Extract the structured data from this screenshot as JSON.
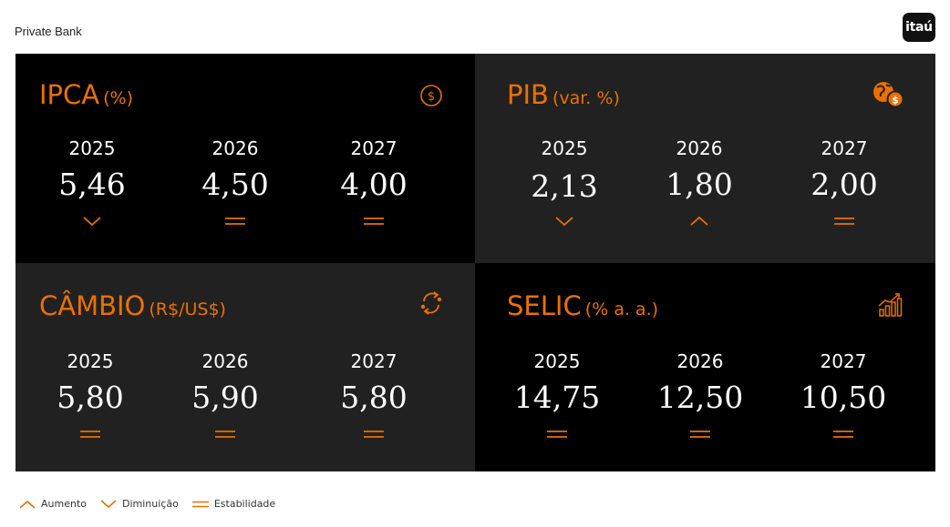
{
  "header": {
    "brand": "Private Bank",
    "logo_text": "itaú"
  },
  "colors": {
    "accent": "#ec7000",
    "panel_black": "#000000",
    "panel_dark": "#212121"
  },
  "panels": [
    {
      "title": "IPCA",
      "unit": "(%)",
      "icon": "dollar-circle-icon",
      "years": [
        "2025",
        "2026",
        "2027"
      ],
      "values": [
        "5,46",
        "4,50",
        "4,00"
      ],
      "indicators": [
        "down",
        "equal",
        "equal"
      ]
    },
    {
      "title": "PIB",
      "unit": "(var. %)",
      "icon": "globe-dollar-icon",
      "years": [
        "2025",
        "2026",
        "2027"
      ],
      "values": [
        "2,13",
        "1,80",
        "2,00"
      ],
      "indicators": [
        "down",
        "up",
        "equal"
      ]
    },
    {
      "title": "CÂMBIO",
      "unit": "(R$/US$)",
      "icon": "exchange-icon",
      "years": [
        "2025",
        "2026",
        "2027"
      ],
      "values": [
        "5,80",
        "5,90",
        "5,80"
      ],
      "indicators": [
        "equal",
        "equal",
        "equal"
      ]
    },
    {
      "title": "SELIC",
      "unit": "(% a. a.)",
      "icon": "growth-chart-icon",
      "years": [
        "2025",
        "2026",
        "2027"
      ],
      "values": [
        "14,75",
        "12,50",
        "10,50"
      ],
      "indicators": [
        "equal",
        "equal",
        "equal"
      ]
    }
  ],
  "legend": {
    "up": "Aumento",
    "down": "Diminuição",
    "equal": "Estabilidade"
  }
}
